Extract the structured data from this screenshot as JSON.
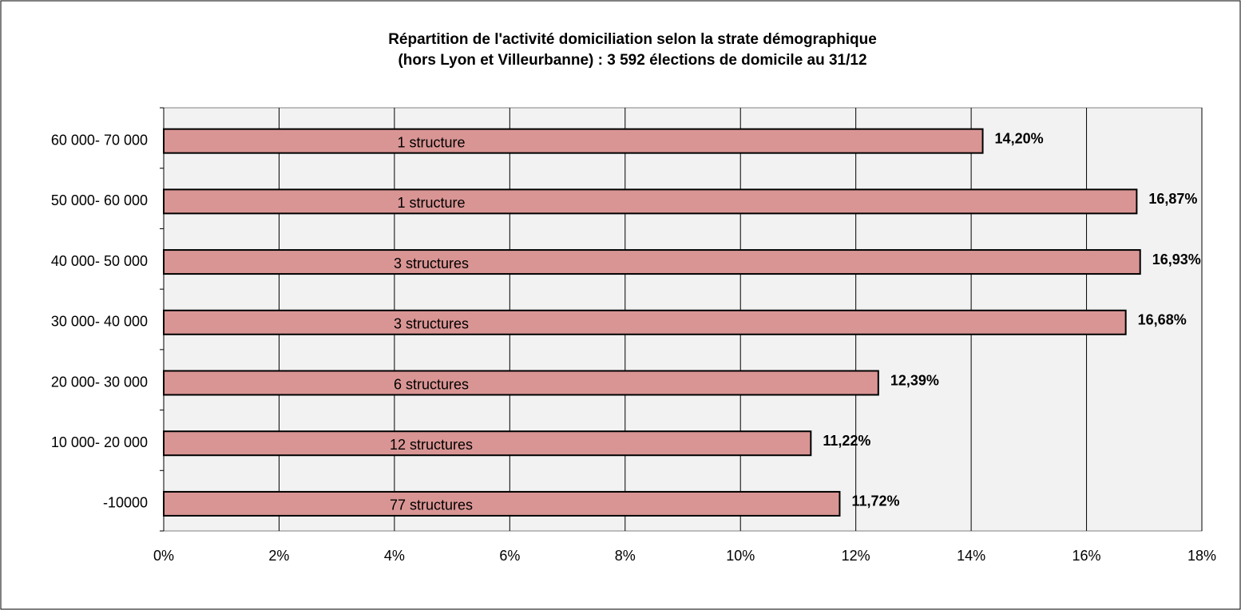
{
  "chart_data": {
    "type": "hbar",
    "title": [
      "Répartition de l'activité domiciliation selon la strate démographique",
      "(hors Lyon et Villeurbanne) : 3 592 élections de domicile au 31/12"
    ],
    "categories": [
      "60 000- 70 000",
      "50 000- 60 000",
      "40 000- 50 000",
      "30 000- 40 000",
      "20 000- 30 000",
      "10 000- 20 000",
      "-10000"
    ],
    "values": [
      14.2,
      16.87,
      16.93,
      16.68,
      12.39,
      11.22,
      11.72
    ],
    "value_labels": [
      "14,20%",
      "16,87%",
      "16,93%",
      "16,68%",
      "12,39%",
      "11,22%",
      "11,72%"
    ],
    "annotations": [
      "1 structure",
      "1 structure",
      "3 structures",
      "3 structures",
      "6 structures",
      "12 structures",
      "77 structures"
    ],
    "color": "#d99594",
    "xlim": [
      0,
      18
    ],
    "xticks": [
      {
        "value": 0,
        "label": "0%"
      },
      {
        "value": 2,
        "label": "2%"
      },
      {
        "value": 4,
        "label": "4%"
      },
      {
        "value": 6,
        "label": "6%"
      },
      {
        "value": 8,
        "label": "8%"
      },
      {
        "value": 10,
        "label": "10%"
      },
      {
        "value": 12,
        "label": "12%"
      },
      {
        "value": 14,
        "label": "14%"
      },
      {
        "value": 16,
        "label": "16%"
      },
      {
        "value": 18,
        "label": "18%"
      }
    ],
    "grid": true
  }
}
